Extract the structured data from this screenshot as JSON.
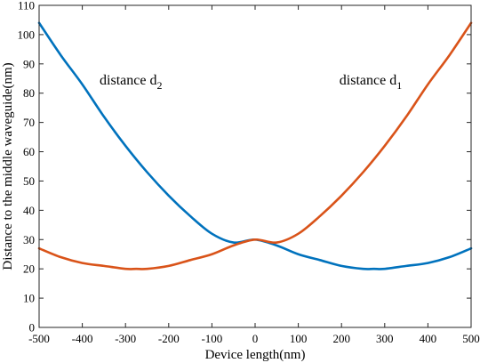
{
  "chart_data": {
    "type": "line",
    "title": "",
    "xlabel": "Device length(nm)",
    "ylabel": "Distance to the middle waveguide(nm)",
    "xlim": [
      -500,
      500
    ],
    "ylim": [
      0,
      110
    ],
    "xticks": [
      -500,
      -400,
      -300,
      -200,
      -100,
      0,
      100,
      200,
      300,
      400,
      500
    ],
    "yticks": [
      0,
      10,
      20,
      30,
      40,
      50,
      60,
      70,
      80,
      90,
      100,
      110
    ],
    "grid": false,
    "legend": "none",
    "series": [
      {
        "color": "#0072BD",
        "x": [
          -500,
          -450,
          -400,
          -350,
          -300,
          -250,
          -200,
          -150,
          -100,
          -50,
          0,
          50,
          100,
          150,
          200,
          250,
          275,
          300,
          350,
          400,
          450,
          500
        ],
        "y": [
          104,
          93,
          83,
          72,
          62,
          53,
          45,
          38,
          32,
          29,
          30,
          28,
          25,
          23,
          21,
          20,
          20,
          20,
          21,
          22,
          24,
          27
        ]
      },
      {
        "color": "#D95319",
        "x": [
          -500,
          -450,
          -400,
          -350,
          -300,
          -275,
          -250,
          -200,
          -150,
          -100,
          -50,
          0,
          50,
          100,
          150,
          200,
          250,
          300,
          350,
          400,
          450,
          500
        ],
        "y": [
          27,
          24,
          22,
          21,
          20,
          20,
          20,
          21,
          23,
          25,
          28,
          30,
          29,
          32,
          38,
          45,
          53,
          62,
          72,
          83,
          93,
          104
        ]
      }
    ],
    "annotations": [
      {
        "name": "d2",
        "text": "distance d",
        "sub": "2",
        "x": -360,
        "y": 83
      },
      {
        "name": "d1",
        "text": "distance d",
        "sub": "1",
        "x": 195,
        "y": 83
      }
    ]
  }
}
